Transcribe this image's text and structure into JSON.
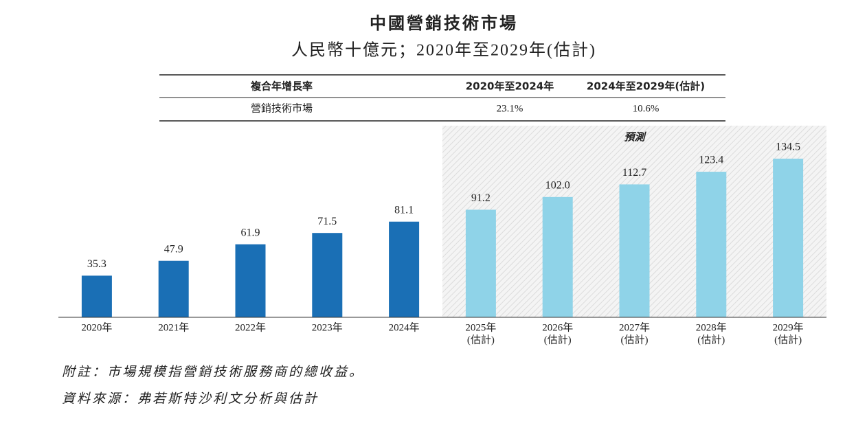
{
  "title": "中國營銷技術市場",
  "subtitle": "人民幣十億元；2020年至2029年(估計)",
  "table": {
    "header": [
      "複合年增長率",
      "2020年至2024年",
      "2024年至2029年(估計)"
    ],
    "rows": [
      [
        "營銷技術市場",
        "23.1%",
        "10.6%"
      ]
    ]
  },
  "chart_data": {
    "type": "bar",
    "forecast_label": "預測",
    "categories": [
      [
        "2020年"
      ],
      [
        "2021年"
      ],
      [
        "2022年"
      ],
      [
        "2023年"
      ],
      [
        "2024年"
      ],
      [
        "2025年",
        "(估計)"
      ],
      [
        "2026年",
        "(估計)"
      ],
      [
        "2027年",
        "(估計)"
      ],
      [
        "2028年",
        "(估計)"
      ],
      [
        "2029年",
        "(估計)"
      ]
    ],
    "values": [
      35.3,
      47.9,
      61.9,
      71.5,
      81.1,
      91.2,
      102.0,
      112.7,
      123.4,
      134.5
    ],
    "value_labels": [
      "35.3",
      "47.9",
      "61.9",
      "71.5",
      "81.1",
      "91.2",
      "102.0",
      "112.7",
      "123.4",
      "134.5"
    ],
    "colors": [
      "#1a6fb5",
      "#1a6fb5",
      "#1a6fb5",
      "#1a6fb5",
      "#1a6fb5",
      "#8fd3e8",
      "#8fd3e8",
      "#8fd3e8",
      "#8fd3e8",
      "#8fd3e8"
    ]
  },
  "notes": [
    "附註：市場規模指營銷技術服務商的總收益。",
    "資料來源：弗若斯特沙利文分析與估計"
  ]
}
